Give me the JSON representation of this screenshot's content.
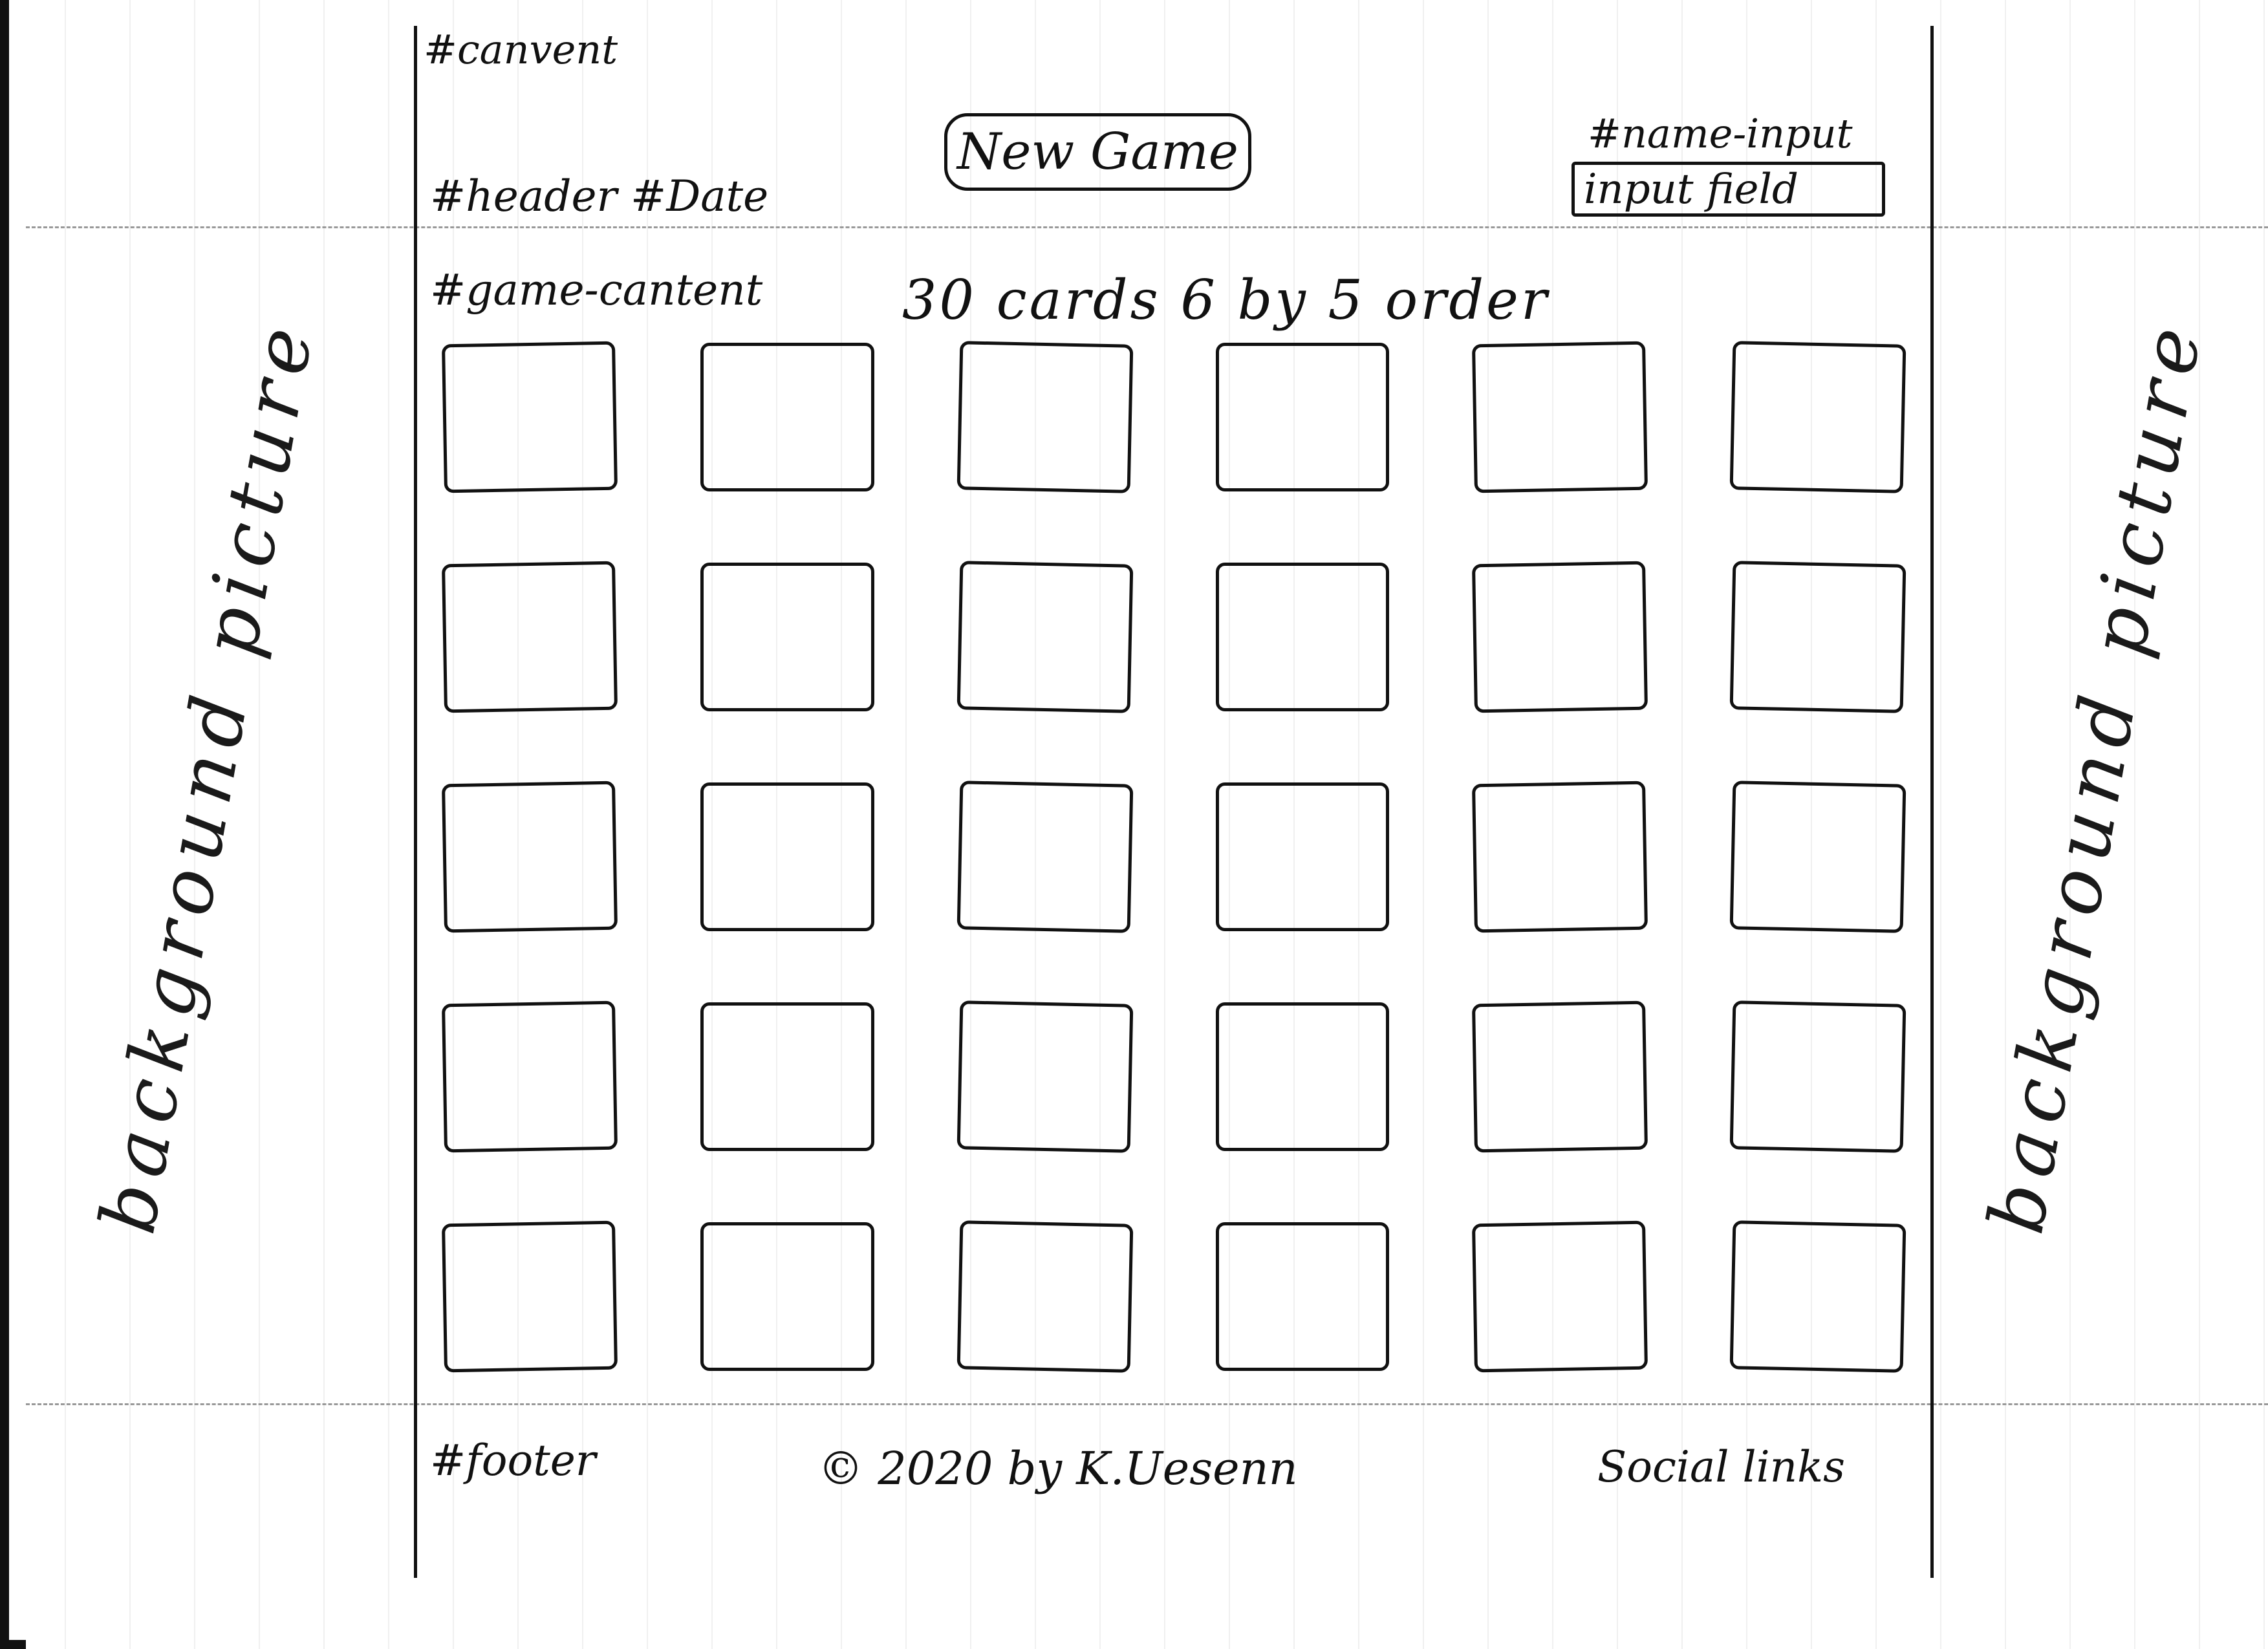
{
  "annotations": {
    "content": "#canvent",
    "header": "#header #Date",
    "name_input": "#name-input",
    "game_content": "#game-cantent",
    "footer": "#footer"
  },
  "header": {
    "new_game_label": "New Game",
    "name_input_placeholder": "input field"
  },
  "game": {
    "note": "30 cards 6 by 5 order"
  },
  "side": {
    "left_label": "background picture",
    "right_label": "background picture"
  },
  "footer": {
    "copyright": "© 2020 by K.Uesenn",
    "social_links": "Social links"
  }
}
